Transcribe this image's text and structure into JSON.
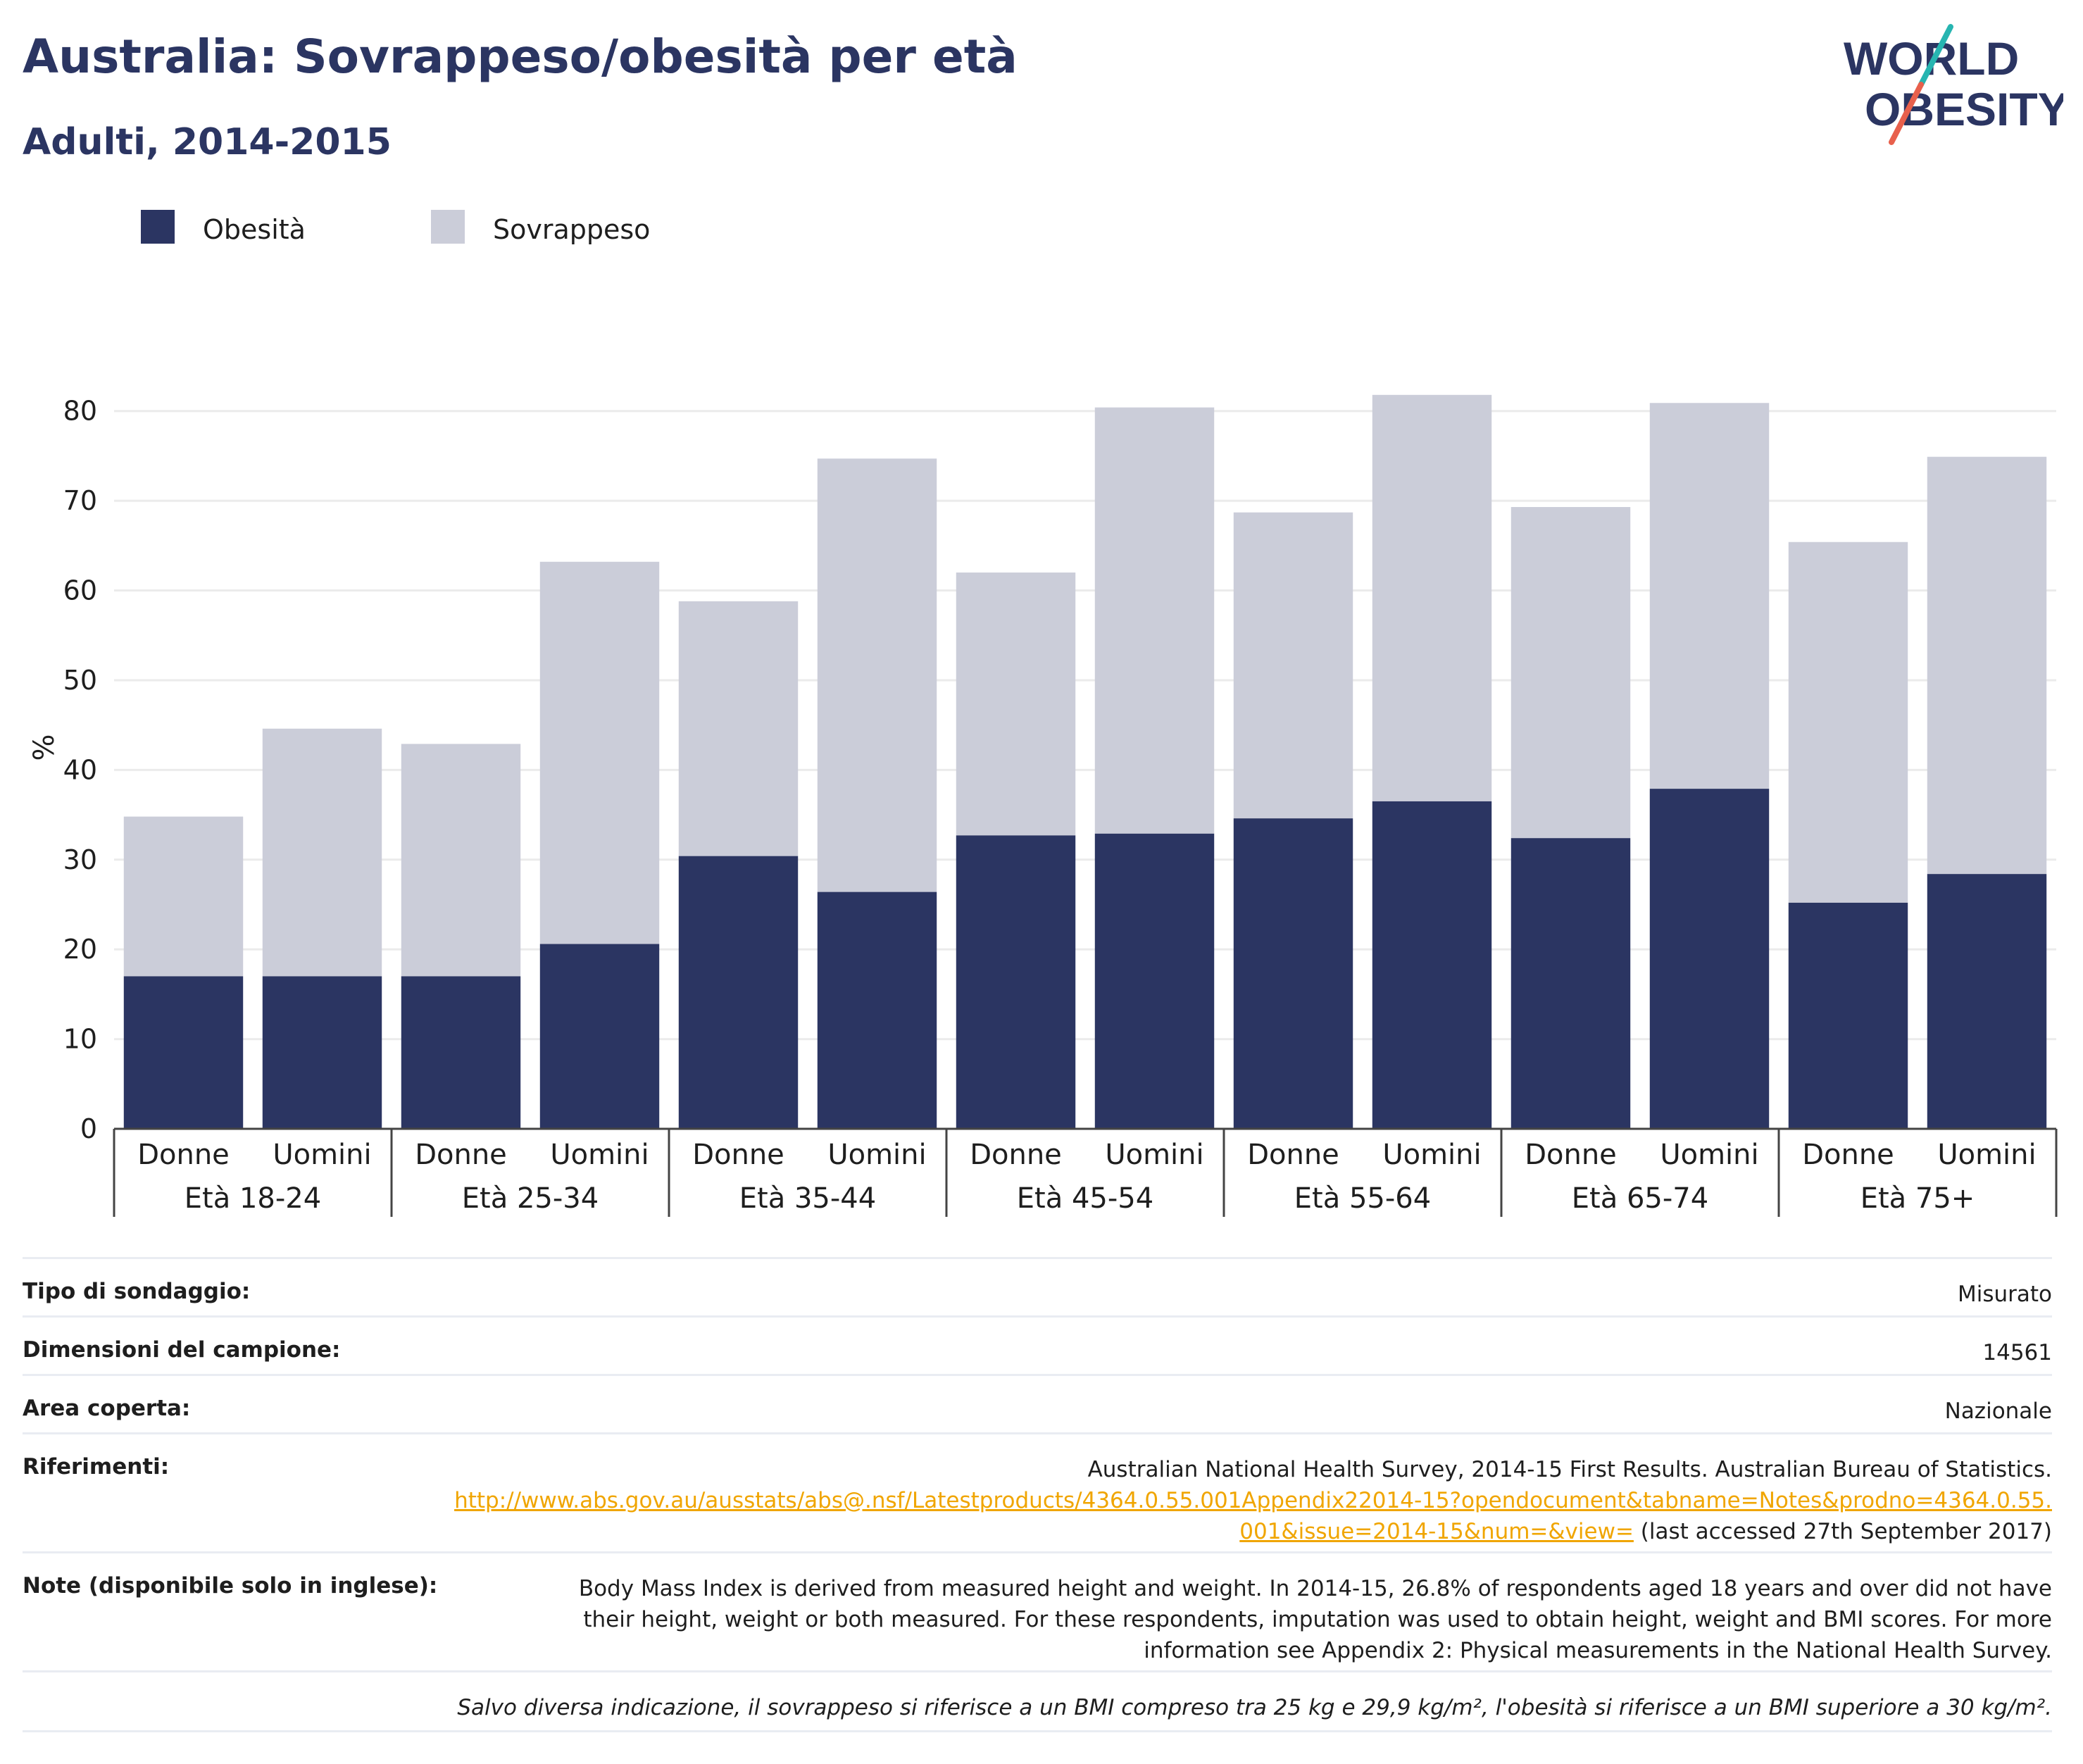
{
  "header": {
    "title": "Australia: Sovrappeso/obesità per età",
    "subtitle": "Adulti, 2014-2015"
  },
  "logo": {
    "line1": "WORLD",
    "line2": "OBESITY",
    "colors": {
      "text": "#2b3562",
      "slash_teal": "#27b5b1",
      "slash_coral": "#e8604c"
    }
  },
  "legend": {
    "items": [
      {
        "label": "Obesità",
        "color": "#2b3562"
      },
      {
        "label": "Sovrappeso",
        "color": "#cbcdd9"
      }
    ]
  },
  "chart_data": {
    "type": "bar",
    "stacked": true,
    "ylabel": "%",
    "ylim": [
      0,
      85
    ],
    "yticks": [
      0,
      10,
      20,
      30,
      40,
      50,
      60,
      70,
      80
    ],
    "grid": true,
    "groups": [
      "Età 18-24",
      "Età 25-34",
      "Età 35-44",
      "Età 45-54",
      "Età 55-64",
      "Età 65-74",
      "Età 75+"
    ],
    "categories": [
      "Donne",
      "Uomini",
      "Donne",
      "Uomini",
      "Donne",
      "Uomini",
      "Donne",
      "Uomini",
      "Donne",
      "Uomini",
      "Donne",
      "Uomini",
      "Donne",
      "Uomini"
    ],
    "series": [
      {
        "name": "Obesità",
        "color": "#2b3562",
        "values": [
          17.0,
          17.0,
          17.0,
          20.6,
          30.4,
          26.4,
          32.7,
          32.9,
          34.6,
          36.5,
          32.4,
          37.9,
          25.2,
          28.4
        ]
      },
      {
        "name": "Sovrappeso",
        "color": "#cbcdd9",
        "values": [
          17.8,
          27.6,
          25.9,
          42.6,
          28.4,
          48.3,
          29.3,
          47.5,
          34.1,
          45.3,
          36.9,
          43.0,
          40.2,
          46.5
        ]
      }
    ]
  },
  "info": {
    "survey_type_label": "Tipo di sondaggio:",
    "survey_type_value": "Misurato",
    "sample_size_label": "Dimensioni del campione:",
    "sample_size_value": "14561",
    "area_label": "Area coperta:",
    "area_value": "Nazionale",
    "refs_label": "Riferimenti:",
    "refs_text": "Australian National Health Survey, 2014-15 First Results. Australian Bureau of Statistics.",
    "refs_link": "http://www.abs.gov.au/ausstats/abs@.nsf/Latestproducts/4364.0.55.001Appendix22014-15?opendocument&tabname=Notes&prodno=4364.0.55.001&issue=2014-15&num=&view=",
    "refs_accessed": " (last accessed 27th September 2017)",
    "notes_label": "Note (disponibile solo in inglese):",
    "notes_text": "Body Mass Index is derived from measured height and weight. In 2014-15, 26.8% of respondents aged 18 years and over did not have their height, weight or both measured. For these respondents, imputation was used to obtain height, weight and BMI scores. For more information see Appendix 2: Physical measurements in the National Health Survey.",
    "footnote": "Salvo diversa indicazione, il sovrappeso si riferisce a un BMI compreso tra 25 kg e 29,9 kg/m², l'obesità si riferisce a un BMI superiore a 30 kg/m²."
  }
}
